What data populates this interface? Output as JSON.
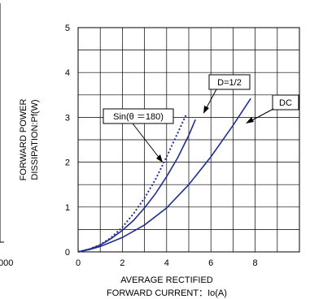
{
  "chart_data": {
    "type": "line",
    "xlabel": [
      "AVERAGE RECTIFIED",
      "FORWARD CURRENT：Io(A)"
    ],
    "ylabel": [
      "FORWARD POWER",
      "DISSIPATION:Pf(W)"
    ],
    "xlim": [
      0,
      10
    ],
    "ylim": [
      0,
      5
    ],
    "x_ticks": [
      "0",
      "2",
      "4",
      "6",
      "8"
    ],
    "y_ticks": [
      "0",
      "1",
      "2",
      "3",
      "4",
      "5"
    ],
    "grid": true,
    "series": [
      {
        "name": "DC",
        "style": "solid",
        "x": [
          0,
          0.5,
          1,
          2,
          3,
          4,
          5,
          6,
          7,
          7.8
        ],
        "y": [
          0,
          0.05,
          0.12,
          0.32,
          0.6,
          0.98,
          1.5,
          2.12,
          2.82,
          3.42
        ]
      },
      {
        "name": "D=1/2",
        "style": "solid",
        "x": [
          0,
          0.5,
          1,
          1.5,
          2,
          2.5,
          3,
          3.5,
          4,
          4.5,
          5,
          5.3
        ],
        "y": [
          0,
          0.06,
          0.15,
          0.3,
          0.48,
          0.7,
          0.98,
          1.3,
          1.68,
          2.1,
          2.6,
          2.95
        ]
      },
      {
        "name": "Sin(θ ＝180)",
        "style": "dotted",
        "x": [
          0,
          0.5,
          1,
          1.5,
          2,
          2.5,
          3,
          3.5,
          4,
          4.5,
          4.9
        ],
        "y": [
          0,
          0.06,
          0.16,
          0.32,
          0.55,
          0.85,
          1.2,
          1.62,
          2.12,
          2.65,
          3.08
        ]
      }
    ],
    "annotations": [
      {
        "label": "D=1/2"
      },
      {
        "label": "DC"
      },
      {
        "label": "Sin(θ ＝180)"
      }
    ],
    "left_fragment": {
      "tick": "000"
    }
  }
}
